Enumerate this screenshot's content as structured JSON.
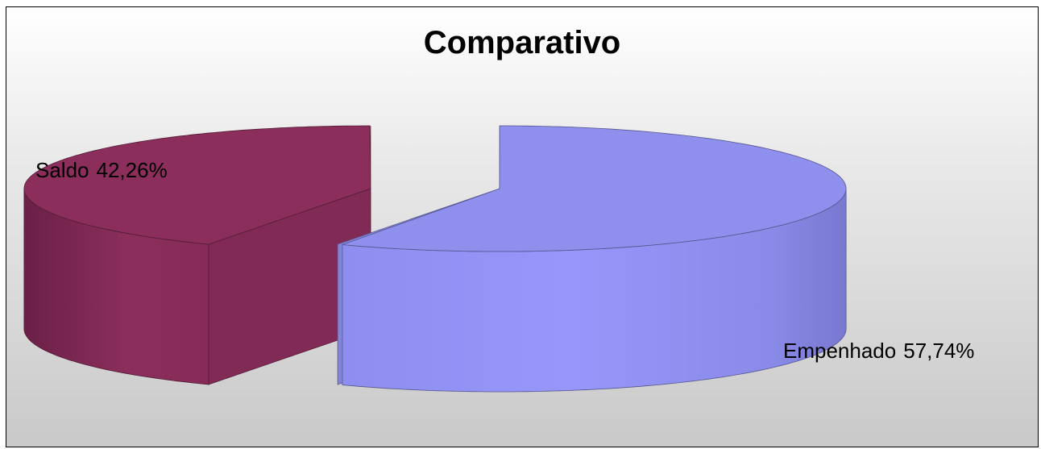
{
  "chart_data": {
    "type": "pie",
    "title": "Comparativo",
    "slices": [
      {
        "label": "Saldo",
        "value": 42.26,
        "value_label": "42,26%",
        "color": "#8b2e5c"
      },
      {
        "label": "Empenhado",
        "value": 57.74,
        "value_label": "57,74%",
        "color": "#8f8fee"
      }
    ],
    "style": "3d-exploded",
    "legend": "none"
  }
}
